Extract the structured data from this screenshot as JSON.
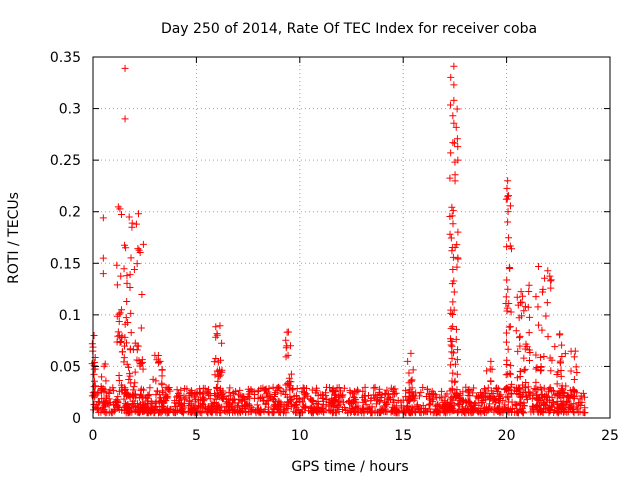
{
  "chart_data": {
    "type": "scatter",
    "title": "Day 250 of 2014, Rate Of TEC Index for receiver coba",
    "xlabel": "GPS time / hours",
    "ylabel": "ROTI / TECUs",
    "xlim": [
      0,
      25
    ],
    "ylim": [
      0,
      0.35
    ],
    "xticks": [
      "0",
      "5",
      "10",
      "15",
      "20",
      "25"
    ],
    "xtick_values": [
      0,
      5,
      10,
      15,
      20,
      25
    ],
    "yticks": [
      "0",
      "0.05",
      "0.1",
      "0.15",
      "0.2",
      "0.25",
      "0.3",
      "0.35"
    ],
    "ytick_values": [
      0,
      0.05,
      0.1,
      0.15,
      0.2,
      0.25,
      0.3,
      0.35
    ],
    "grid": true,
    "marker": "+",
    "color": "#ff0000",
    "baseline": {
      "x_range": [
        0,
        23.8
      ],
      "y_range": [
        0.005,
        0.03
      ],
      "count": 1400
    },
    "bursts": [
      {
        "center": 0.05,
        "width": 0.1,
        "ymax": 0.08,
        "count": 16
      },
      {
        "center": 0.5,
        "width": 0.15,
        "ymax": 0.06,
        "count": 8
      },
      {
        "center": 1.5,
        "width": 0.4,
        "ymax": 0.22,
        "count": 60
      },
      {
        "center": 2.2,
        "width": 0.25,
        "ymax": 0.18,
        "count": 28
      },
      {
        "center": 3.1,
        "width": 0.25,
        "ymax": 0.08,
        "count": 14
      },
      {
        "center": 6.05,
        "width": 0.2,
        "ymax": 0.09,
        "count": 24
      },
      {
        "center": 9.45,
        "width": 0.15,
        "ymax": 0.085,
        "count": 20
      },
      {
        "center": 15.3,
        "width": 0.2,
        "ymax": 0.065,
        "count": 14
      },
      {
        "center": 17.45,
        "width": 0.2,
        "ymax": 0.34,
        "count": 70
      },
      {
        "center": 18.9,
        "width": 0.4,
        "ymax": 0.055,
        "count": 14
      },
      {
        "center": 20.1,
        "width": 0.15,
        "ymax": 0.23,
        "count": 40
      },
      {
        "center": 20.8,
        "width": 0.35,
        "ymax": 0.13,
        "count": 50
      },
      {
        "center": 21.8,
        "width": 0.4,
        "ymax": 0.15,
        "count": 40
      },
      {
        "center": 22.6,
        "width": 0.3,
        "ymax": 0.09,
        "count": 20
      },
      {
        "center": 23.3,
        "width": 0.25,
        "ymax": 0.065,
        "count": 10
      }
    ],
    "outliers": [
      {
        "x": 1.55,
        "y": 0.339
      },
      {
        "x": 1.55,
        "y": 0.29
      },
      {
        "x": 0.5,
        "y": 0.194
      },
      {
        "x": 0.5,
        "y": 0.155
      },
      {
        "x": 0.5,
        "y": 0.14
      },
      {
        "x": 17.45,
        "y": 0.341
      },
      {
        "x": 17.45,
        "y": 0.323
      },
      {
        "x": 17.45,
        "y": 0.308
      },
      {
        "x": 17.4,
        "y": 0.293
      },
      {
        "x": 17.4,
        "y": 0.267
      },
      {
        "x": 20.05,
        "y": 0.23
      },
      {
        "x": 20.05,
        "y": 0.215
      },
      {
        "x": 20.05,
        "y": 0.19
      },
      {
        "x": 20.0,
        "y": 0.166
      },
      {
        "x": 2.2,
        "y": 0.198
      },
      {
        "x": 2.1,
        "y": 0.188
      },
      {
        "x": 0.05,
        "y": 0.08
      }
    ]
  }
}
